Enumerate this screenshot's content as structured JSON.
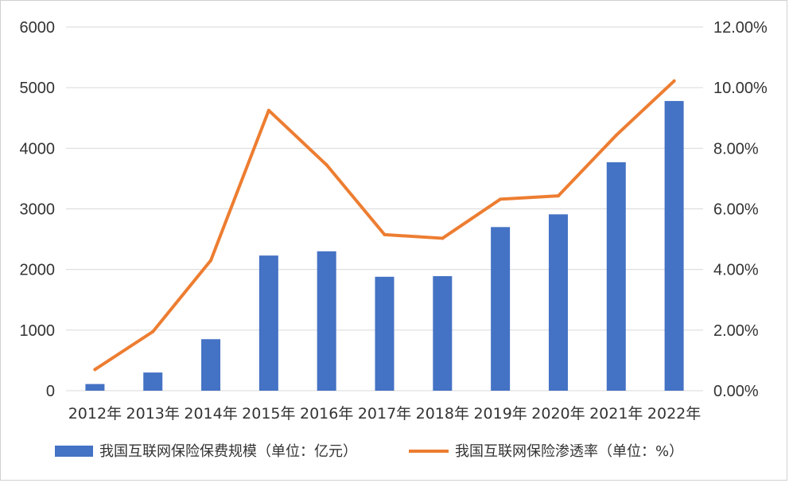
{
  "chart_data": {
    "type": "bar+line",
    "categories": [
      "2012年",
      "2013年",
      "2014年",
      "2015年",
      "2016年",
      "2017年",
      "2018年",
      "2019年",
      "2020年",
      "2021年",
      "2022年"
    ],
    "series": [
      {
        "name": "我国互联网保险保费规模（单位：亿元）",
        "type": "bar",
        "axis": "left",
        "color": "#4472C4",
        "values": [
          110,
          300,
          850,
          2230,
          2300,
          1880,
          1890,
          2700,
          2910,
          3770,
          4780
        ]
      },
      {
        "name": "我国互联网保险渗透率（单位：%）",
        "type": "line",
        "axis": "right",
        "color": "#ED7D31",
        "values": [
          0.007,
          0.0195,
          0.043,
          0.0925,
          0.0745,
          0.0515,
          0.0503,
          0.0632,
          0.0643,
          0.0843,
          0.1022
        ]
      }
    ],
    "y_left": {
      "min": 0,
      "max": 6000,
      "ticks": [
        "0",
        "1000",
        "2000",
        "3000",
        "4000",
        "5000",
        "6000"
      ]
    },
    "y_right": {
      "min": 0,
      "max": 0.12,
      "ticks": [
        "0.00%",
        "2.00%",
        "4.00%",
        "6.00%",
        "8.00%",
        "10.00%",
        "12.00%"
      ]
    },
    "grid": true,
    "legend_position": "bottom",
    "gridline_color": "#d9d9d9"
  }
}
